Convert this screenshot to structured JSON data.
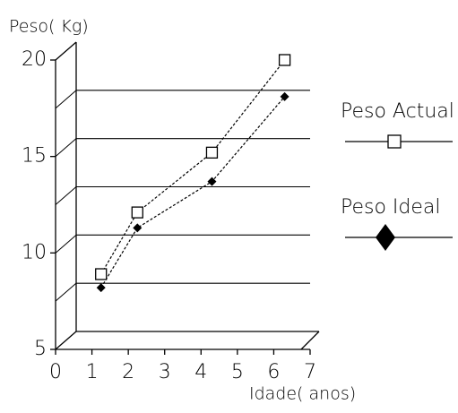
{
  "chart_data": {
    "type": "line",
    "y_label": "Peso( Kg)",
    "x_label": "Idade( anos)",
    "series": [
      {
        "name": "Peso Actual",
        "color": "#000000",
        "marker": "square",
        "x": [
          1.25,
          2.25,
          4.3,
          6.3
        ],
        "values": [
          8.9,
          12.1,
          15.2,
          20
        ]
      },
      {
        "name": "Peso Ideal",
        "color": "#000000",
        "marker": "diamond",
        "x": [
          1.25,
          2.25,
          4.3,
          6.3
        ],
        "values": [
          8.2,
          11.3,
          13.7,
          18.1
        ]
      }
    ],
    "xlim": [
      0,
      7
    ],
    "xticks": [
      0,
      1,
      2,
      3,
      4,
      5,
      6,
      7
    ],
    "ylim": [
      5,
      20
    ],
    "yticks": [
      5,
      10,
      15,
      20
    ],
    "grid_ticks": [
      7.5,
      10,
      12.5,
      15,
      17.5
    ],
    "grid": true,
    "legend": "right"
  }
}
